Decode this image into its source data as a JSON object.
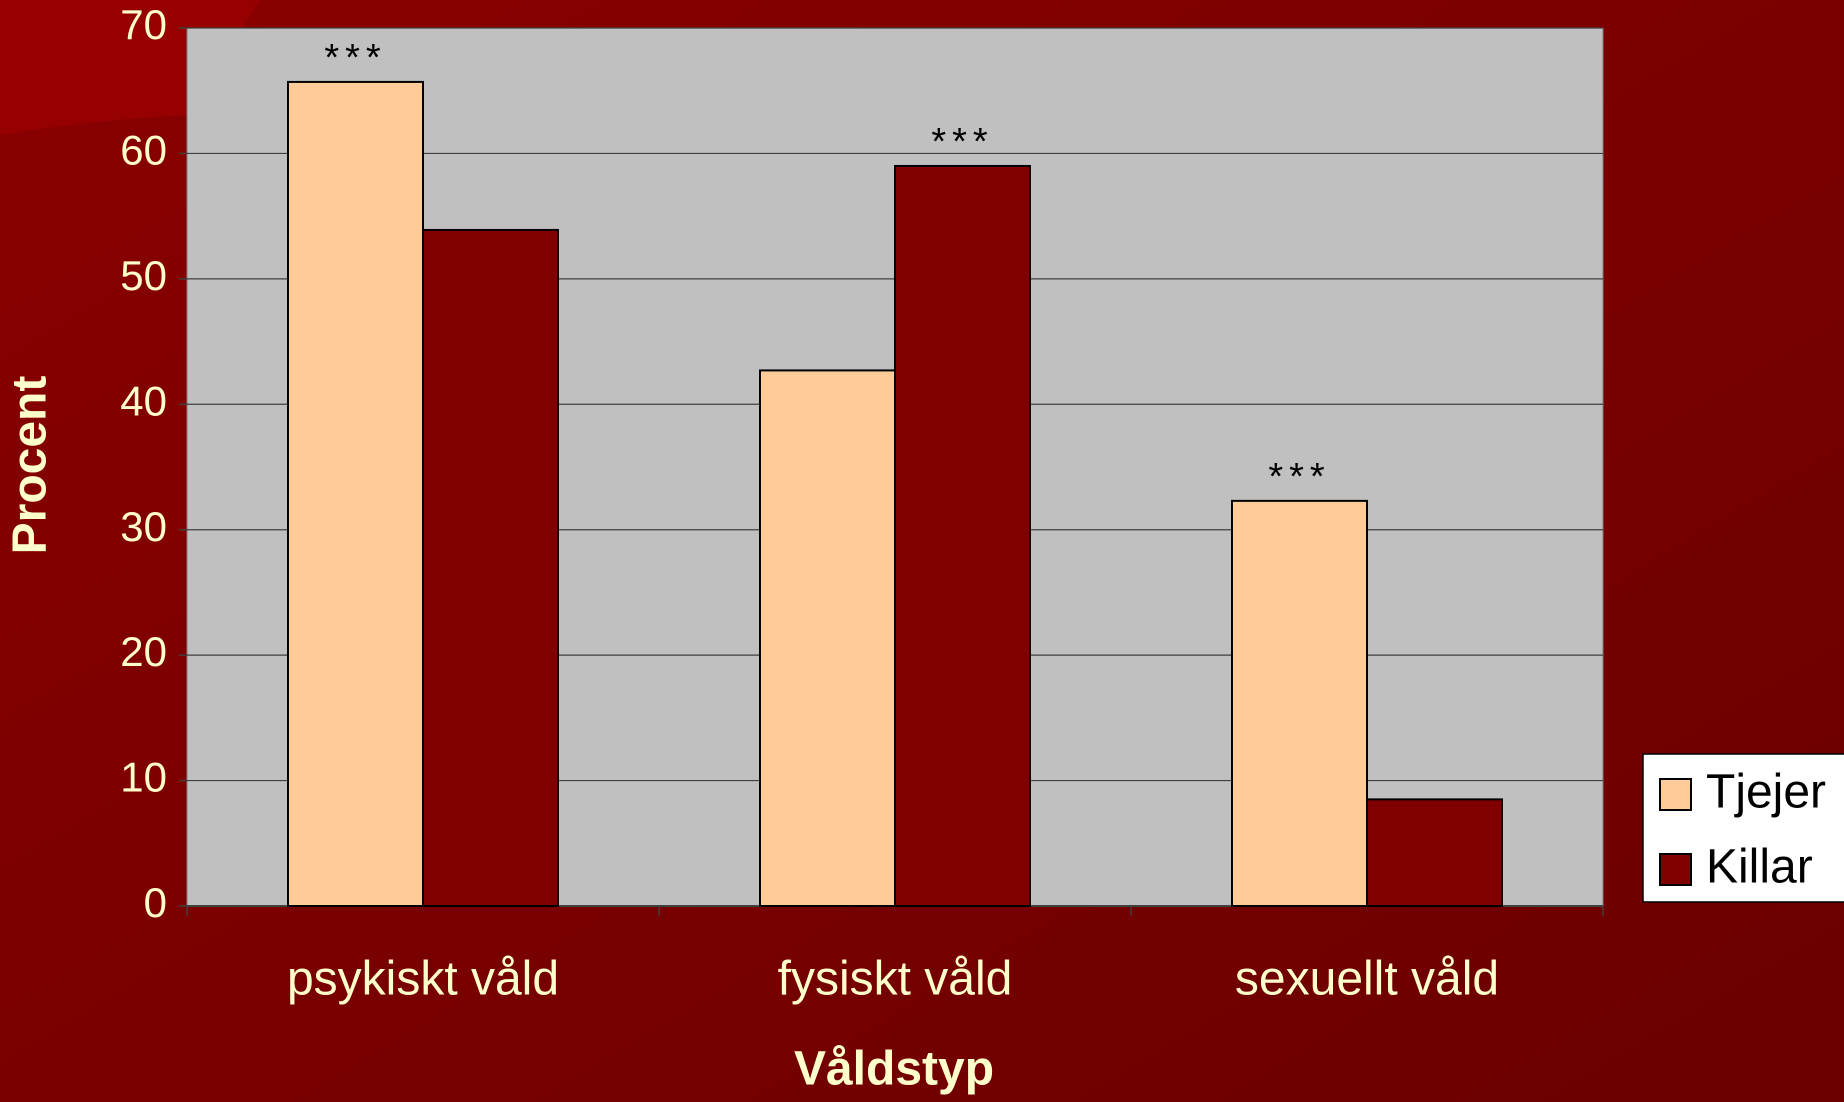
{
  "chart_data": {
    "type": "bar",
    "categories": [
      "psykiskt våld",
      "fysiskt våld",
      "sexuellt våld"
    ],
    "series": [
      {
        "name": "Tjejer",
        "color": "#ffcc99",
        "values": [
          65.7,
          42.7,
          32.3
        ],
        "annotations": [
          "***",
          null,
          "***"
        ]
      },
      {
        "name": "Killar",
        "color": "#800000",
        "values": [
          53.9,
          59.0,
          8.5
        ],
        "annotations": [
          null,
          "***",
          null
        ]
      }
    ],
    "x_label": "Våldstyp",
    "y_label": "Procent",
    "ylim": [
      0,
      70
    ],
    "yticks": [
      0,
      10,
      20,
      30,
      40,
      50,
      60,
      70
    ],
    "grid": true,
    "legend": "right"
  }
}
